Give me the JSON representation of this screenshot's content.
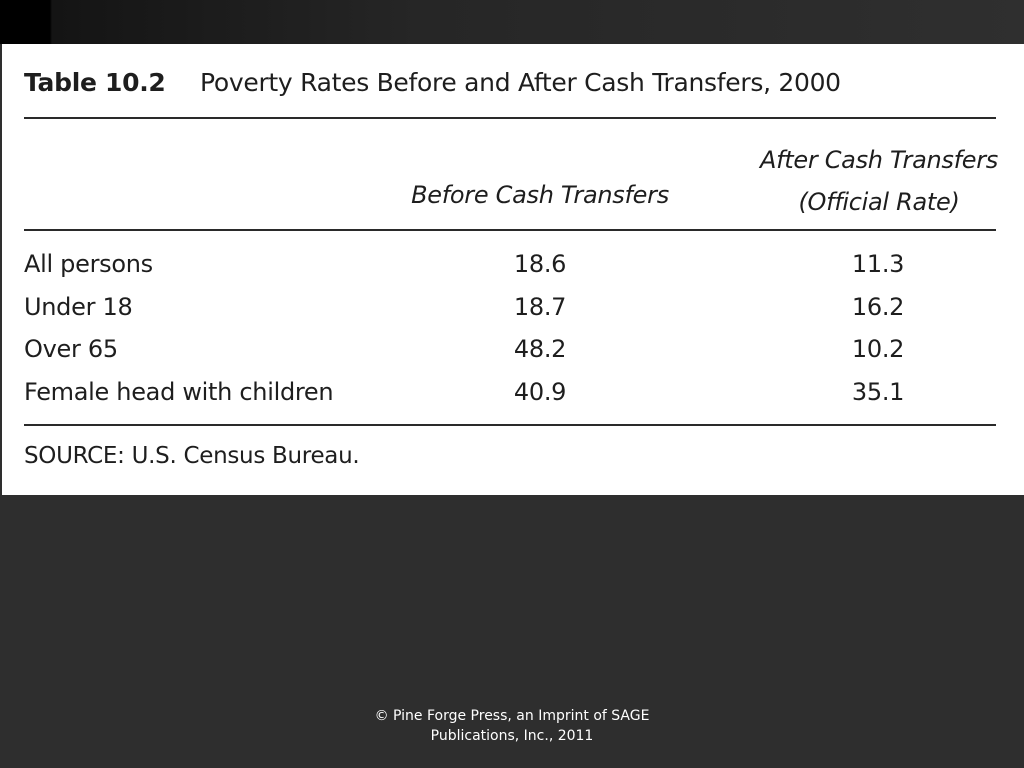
{
  "slide": {
    "table": {
      "label": "Table 10.2",
      "caption": "Poverty Rates Before and After Cash Transfers, 2000",
      "columns": {
        "before": "Before Cash Transfers",
        "after_line1": "After Cash Transfers",
        "after_line2": "(Official Rate)"
      },
      "rows": [
        {
          "label": "All persons",
          "before": "18.6",
          "after": "11.3"
        },
        {
          "label": "Under 18",
          "before": "18.7",
          "after": "16.2"
        },
        {
          "label": "Over 65",
          "before": "48.2",
          "after": "10.2"
        },
        {
          "label": "Female head with children",
          "before": "40.9",
          "after": "35.1"
        }
      ],
      "source": "SOURCE: U.S. Census Bureau."
    },
    "footer": {
      "line1": "© Pine Forge Press, an Imprint of SAGE",
      "line2": "Publications, Inc., 2011"
    }
  },
  "colors": {
    "background": "#2e2e2e",
    "table_background": "#ffffff",
    "text": "#1e1e1e",
    "footer_text": "#ffffff"
  }
}
